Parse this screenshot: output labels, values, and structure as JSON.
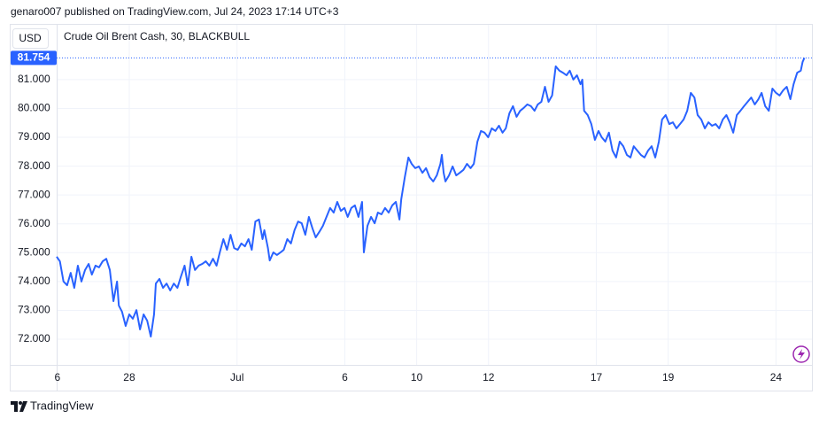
{
  "header": "genaro007 published on TradingView.com, Jul 24, 2023 17:14 UTC+3",
  "footer": "TradingView",
  "chart_data": {
    "type": "line",
    "title": "Crude Oil Brent Cash, 30, BLACKBULL",
    "currency": "USD",
    "color": "#2962ff",
    "grid": true,
    "last_price": {
      "value": 81.754,
      "label": "81.754"
    },
    "xlim": [
      -0.02,
      21.0
    ],
    "ylim": [
      71.11,
      82.9
    ],
    "xticks": [
      {
        "value": 0,
        "label": "6"
      },
      {
        "value": 2,
        "label": "28"
      },
      {
        "value": 5,
        "label": "Jul"
      },
      {
        "value": 8,
        "label": "6"
      },
      {
        "value": 10,
        "label": "10"
      },
      {
        "value": 12,
        "label": "12"
      },
      {
        "value": 15,
        "label": "17"
      },
      {
        "value": 17,
        "label": "19"
      },
      {
        "value": 20,
        "label": "24"
      }
    ],
    "yticks": [
      {
        "value": 72,
        "label": "72.000"
      },
      {
        "value": 73,
        "label": "73.000"
      },
      {
        "value": 74,
        "label": "74.000"
      },
      {
        "value": 75,
        "label": "75.000"
      },
      {
        "value": 76,
        "label": "76.000"
      },
      {
        "value": 77,
        "label": "77.000"
      },
      {
        "value": 78,
        "label": "78.000"
      },
      {
        "value": 79,
        "label": "79.000"
      },
      {
        "value": 80,
        "label": "80.000"
      },
      {
        "value": 81,
        "label": "81.000"
      }
    ],
    "x": [
      -0.02,
      0.07,
      0.17,
      0.27,
      0.37,
      0.47,
      0.57,
      0.67,
      0.77,
      0.87,
      0.96,
      1.06,
      1.16,
      1.26,
      1.36,
      1.46,
      1.56,
      1.66,
      1.71,
      1.8,
      1.9,
      2.0,
      2.1,
      2.2,
      2.3,
      2.4,
      2.5,
      2.6,
      2.69,
      2.74,
      2.84,
      2.94,
      3.04,
      3.14,
      3.24,
      3.34,
      3.44,
      3.54,
      3.63,
      3.73,
      3.83,
      3.93,
      4.03,
      4.13,
      4.23,
      4.33,
      4.43,
      4.52,
      4.62,
      4.72,
      4.82,
      4.92,
      5.02,
      5.12,
      5.22,
      5.32,
      5.41,
      5.51,
      5.61,
      5.71,
      5.76,
      5.86,
      5.91,
      6.01,
      6.11,
      6.21,
      6.3,
      6.4,
      6.5,
      6.6,
      6.7,
      6.8,
      6.9,
      7.0,
      7.1,
      7.19,
      7.29,
      7.39,
      7.49,
      7.59,
      7.69,
      7.79,
      7.89,
      7.99,
      8.08,
      8.18,
      8.28,
      8.38,
      8.48,
      8.53,
      8.63,
      8.73,
      8.83,
      8.92,
      9.02,
      9.12,
      9.22,
      9.32,
      9.42,
      9.52,
      9.57,
      9.67,
      9.77,
      9.86,
      9.96,
      10.06,
      10.16,
      10.26,
      10.36,
      10.46,
      10.56,
      10.66,
      10.7,
      10.75,
      10.8,
      10.9,
      11.0,
      11.1,
      11.2,
      11.3,
      11.4,
      11.5,
      11.59,
      11.69,
      11.79,
      11.89,
      11.99,
      12.09,
      12.19,
      12.29,
      12.39,
      12.48,
      12.58,
      12.68,
      12.78,
      12.88,
      12.98,
      13.08,
      13.18,
      13.28,
      13.37,
      13.47,
      13.57,
      13.67,
      13.77,
      13.87,
      13.97,
      14.07,
      14.17,
      14.26,
      14.36,
      14.46,
      14.56,
      14.61,
      14.66,
      14.76,
      14.86,
      14.96,
      15.06,
      15.15,
      15.25,
      15.35,
      15.45,
      15.55,
      15.65,
      15.75,
      15.85,
      15.95,
      16.04,
      16.14,
      16.24,
      16.34,
      16.44,
      16.54,
      16.64,
      16.74,
      16.83,
      16.93,
      17.03,
      17.13,
      17.23,
      17.33,
      17.43,
      17.53,
      17.63,
      17.73,
      17.82,
      17.92,
      18.02,
      18.12,
      18.22,
      18.32,
      18.42,
      18.52,
      18.62,
      18.71,
      18.81,
      18.91,
      19.01,
      19.11,
      19.21,
      19.31,
      19.41,
      19.51,
      19.6,
      19.7,
      19.8,
      19.9,
      20.0,
      20.1,
      20.2,
      20.3,
      20.4,
      20.49,
      20.59,
      20.69,
      20.74,
      20.79
    ],
    "values": [
      74.86,
      74.7,
      74.0,
      73.87,
      74.3,
      73.78,
      74.55,
      74.0,
      74.4,
      74.61,
      74.24,
      74.55,
      74.49,
      74.7,
      74.79,
      74.4,
      73.32,
      74.0,
      73.17,
      72.95,
      72.46,
      72.86,
      72.71,
      73.01,
      72.34,
      72.86,
      72.64,
      72.09,
      72.86,
      73.93,
      74.09,
      73.78,
      73.93,
      73.69,
      73.93,
      73.78,
      74.18,
      74.55,
      73.87,
      74.86,
      74.4,
      74.55,
      74.61,
      74.7,
      74.55,
      74.79,
      74.55,
      75.01,
      75.47,
      75.1,
      75.62,
      75.16,
      75.1,
      75.32,
      75.22,
      75.47,
      75.1,
      76.08,
      76.15,
      75.47,
      75.78,
      75.16,
      74.73,
      75.01,
      74.92,
      75.01,
      75.1,
      75.47,
      75.32,
      75.78,
      76.08,
      76.02,
      75.62,
      76.24,
      75.84,
      75.53,
      75.72,
      75.93,
      76.24,
      76.55,
      76.39,
      76.76,
      76.45,
      76.55,
      76.24,
      76.55,
      76.64,
      76.24,
      76.76,
      75.01,
      75.93,
      76.24,
      76.02,
      76.39,
      76.33,
      76.55,
      76.39,
      76.64,
      76.76,
      76.15,
      76.85,
      77.62,
      78.3,
      78.08,
      77.93,
      77.99,
      77.77,
      77.93,
      77.62,
      77.47,
      77.68,
      78.08,
      78.39,
      77.77,
      77.47,
      77.68,
      77.99,
      77.68,
      77.77,
      77.87,
      78.08,
      77.93,
      78.08,
      78.85,
      79.22,
      79.16,
      79.0,
      79.31,
      79.22,
      79.4,
      79.16,
      79.31,
      79.83,
      80.08,
      79.71,
      79.92,
      80.02,
      80.14,
      80.08,
      79.92,
      80.14,
      80.23,
      80.75,
      80.23,
      80.45,
      81.46,
      81.31,
      81.24,
      81.15,
      81.31,
      81.0,
      81.15,
      80.84,
      81.0,
      79.92,
      79.77,
      79.46,
      78.91,
      79.22,
      79.0,
      78.85,
      79.16,
      78.54,
      78.3,
      78.85,
      78.69,
      78.39,
      78.3,
      78.69,
      78.54,
      78.39,
      78.3,
      78.54,
      78.69,
      78.3,
      78.85,
      79.62,
      79.77,
      79.46,
      79.52,
      79.31,
      79.46,
      79.62,
      79.92,
      80.54,
      80.38,
      79.77,
      79.62,
      79.31,
      79.52,
      79.4,
      79.46,
      79.31,
      79.62,
      79.77,
      79.52,
      79.16,
      79.77,
      79.92,
      80.08,
      80.23,
      80.38,
      80.14,
      80.32,
      80.54,
      80.08,
      79.92,
      80.69,
      80.54,
      80.45,
      80.63,
      80.75,
      80.32,
      80.84,
      81.24,
      81.31,
      81.61,
      81.754
    ]
  }
}
